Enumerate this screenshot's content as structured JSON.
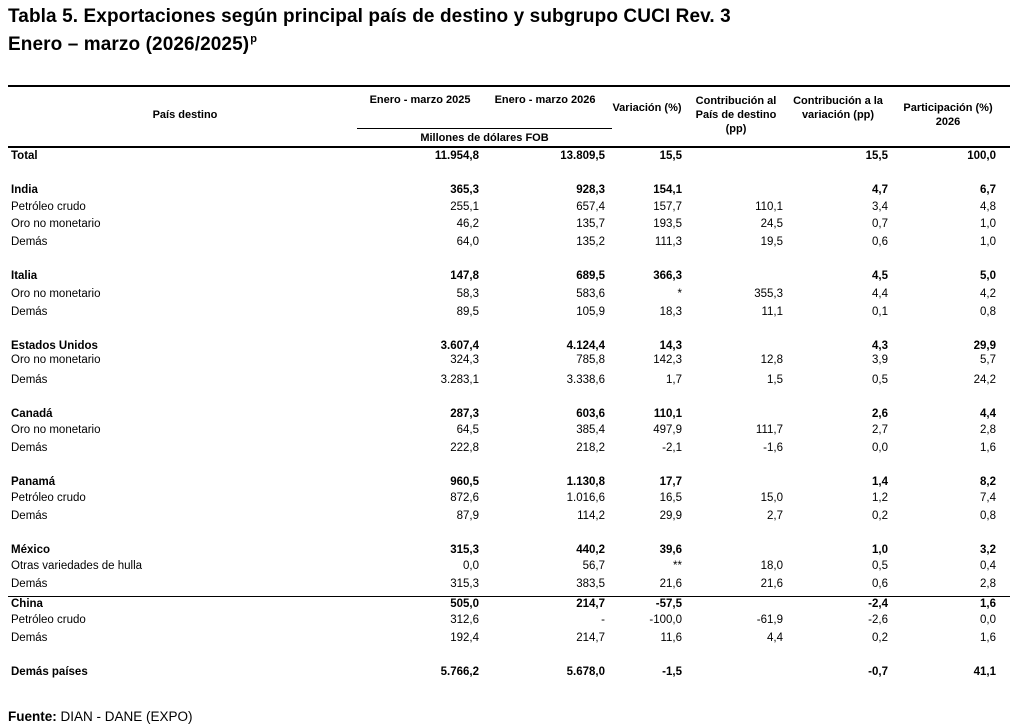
{
  "title": "Tabla 5. Exportaciones según principal país de destino y subgrupo CUCI Rev. 3",
  "subtitle": "Enero – marzo (2026/2025)",
  "subtitle_sup": "p",
  "headers": {
    "pais": "País destino",
    "ene2025": "Enero - marzo 2025",
    "ene2026": "Enero - marzo 2026",
    "variacion": "Variación (%)",
    "contrib_pais": "Contribución al País de destino (pp)",
    "contrib_var": "Contribución a la variación (pp)",
    "participacion": "Participación (%) 2026",
    "unit": "Millones de dólares FOB"
  },
  "rows": [
    {
      "label": "Total",
      "v2025": "11.954,8",
      "v2026": "13.809,5",
      "var": "15,5",
      "cp": "",
      "cv": "15,5",
      "part": "100,0",
      "bold": true
    },
    {
      "label": "India",
      "v2025": "365,3",
      "v2026": "928,3",
      "var": "154,1",
      "cp": "",
      "cv": "4,7",
      "part": "6,7",
      "bold": true
    },
    {
      "label": "Petróleo crudo",
      "v2025": "255,1",
      "v2026": "657,4",
      "var": "157,7",
      "cp": "110,1",
      "cv": "3,4",
      "part": "4,8",
      "bold": false
    },
    {
      "label": "Oro no monetario",
      "v2025": "46,2",
      "v2026": "135,7",
      "var": "193,5",
      "cp": "24,5",
      "cv": "0,7",
      "part": "1,0",
      "bold": false
    },
    {
      "label": "Demás",
      "v2025": "64,0",
      "v2026": "135,2",
      "var": "111,3",
      "cp": "19,5",
      "cv": "0,6",
      "part": "1,0",
      "bold": false
    },
    {
      "label": "Italia",
      "v2025": "147,8",
      "v2026": "689,5",
      "var": "366,3",
      "cp": "",
      "cv": "4,5",
      "part": "5,0",
      "bold": true
    },
    {
      "label": "Oro no monetario",
      "v2025": "58,3",
      "v2026": "583,6",
      "var": "*",
      "cp": "355,3",
      "cv": "4,4",
      "part": "4,2",
      "bold": false
    },
    {
      "label": "Demás",
      "v2025": "89,5",
      "v2026": "105,9",
      "var": "18,3",
      "cp": "11,1",
      "cv": "0,1",
      "part": "0,8",
      "bold": false
    },
    {
      "label": "Estados Unidos",
      "v2025": "3.607,4",
      "v2026": "4.124,4",
      "var": "14,3",
      "cp": "",
      "cv": "4,3",
      "part": "29,9",
      "bold": true
    },
    {
      "label": "Oro no monetario",
      "v2025": "324,3",
      "v2026": "785,8",
      "var": "142,3",
      "cp": "12,8",
      "cv": "3,9",
      "part": "5,7",
      "bold": false
    },
    {
      "label": "Demás",
      "v2025": "3.283,1",
      "v2026": "3.338,6",
      "var": "1,7",
      "cp": "1,5",
      "cv": "0,5",
      "part": "24,2",
      "bold": false
    },
    {
      "label": "Canadá",
      "v2025": "287,3",
      "v2026": "603,6",
      "var": "110,1",
      "cp": "",
      "cv": "2,6",
      "part": "4,4",
      "bold": true
    },
    {
      "label": "Oro no monetario",
      "v2025": "64,5",
      "v2026": "385,4",
      "var": "497,9",
      "cp": "111,7",
      "cv": "2,7",
      "part": "2,8",
      "bold": false
    },
    {
      "label": "Demás",
      "v2025": "222,8",
      "v2026": "218,2",
      "var": "-2,1",
      "cp": "-1,6",
      "cv": "0,0",
      "part": "1,6",
      "bold": false
    },
    {
      "label": "Panamá",
      "v2025": "960,5",
      "v2026": "1.130,8",
      "var": "17,7",
      "cp": "",
      "cv": "1,4",
      "part": "8,2",
      "bold": true
    },
    {
      "label": "Petróleo crudo",
      "v2025": "872,6",
      "v2026": "1.016,6",
      "var": "16,5",
      "cp": "15,0",
      "cv": "1,2",
      "part": "7,4",
      "bold": false
    },
    {
      "label": "Demás",
      "v2025": "87,9",
      "v2026": "114,2",
      "var": "29,9",
      "cp": "2,7",
      "cv": "0,2",
      "part": "0,8",
      "bold": false
    },
    {
      "label": "México",
      "v2025": "315,3",
      "v2026": "440,2",
      "var": "39,6",
      "cp": "",
      "cv": "1,0",
      "part": "3,2",
      "bold": true
    },
    {
      "label": "Otras variedades de hulla",
      "v2025": "0,0",
      "v2026": "56,7",
      "var": "**",
      "cp": "18,0",
      "cv": "0,5",
      "part": "0,4",
      "bold": false
    },
    {
      "label": "Demás",
      "v2025": "315,3",
      "v2026": "383,5",
      "var": "21,6",
      "cp": "21,6",
      "cv": "0,6",
      "part": "2,8",
      "bold": false
    },
    {
      "label": "China",
      "v2025": "505,0",
      "v2026": "214,7",
      "var": "-57,5",
      "cp": "",
      "cv": "-2,4",
      "part": "1,6",
      "bold": true
    },
    {
      "label": "Petróleo crudo",
      "v2025": "312,6",
      "v2026": "-",
      "var": "-100,0",
      "cp": "-61,9",
      "cv": "-2,6",
      "part": "0,0",
      "bold": false
    },
    {
      "label": "Demás",
      "v2025": "192,4",
      "v2026": "214,7",
      "var": "11,6",
      "cp": "4,4",
      "cv": "0,2",
      "part": "1,6",
      "bold": false
    },
    {
      "label": "Demás países",
      "v2025": "5.766,2",
      "v2026": "5.678,0",
      "var": "-1,5",
      "cp": "",
      "cv": "-0,7",
      "part": "41,1",
      "bold": true
    }
  ],
  "footer": {
    "label": "Fuente:",
    "text": " DIAN - DANE (EXPO)"
  }
}
